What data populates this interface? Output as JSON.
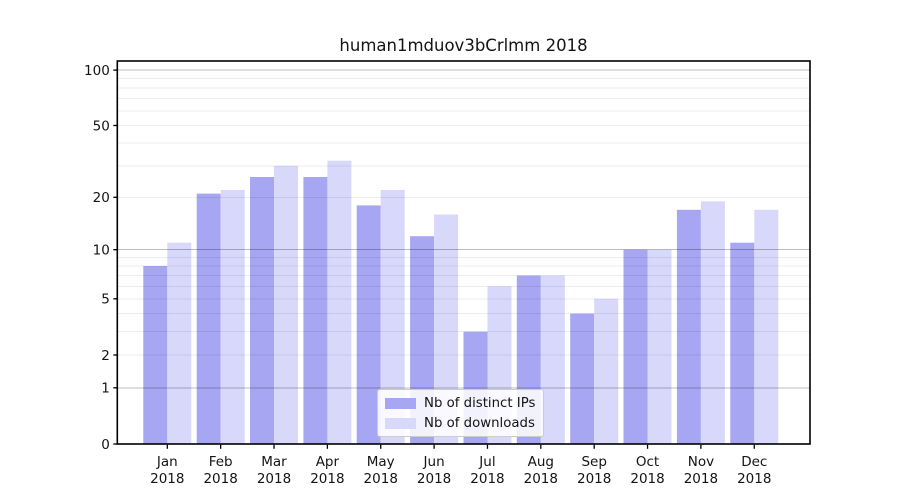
{
  "chart_data": {
    "type": "bar",
    "title": "human1mduov3bCrlmm 2018",
    "categories": [
      "Jan",
      "Feb",
      "Mar",
      "Apr",
      "May",
      "Jun",
      "Jul",
      "Aug",
      "Sep",
      "Oct",
      "Nov",
      "Dec"
    ],
    "year_label": "2018",
    "series": [
      {
        "name": "Nb of distinct IPs",
        "color": "#a6a6f2",
        "values": [
          8,
          21,
          26,
          26,
          18,
          12,
          3,
          7,
          4,
          10,
          17,
          11
        ]
      },
      {
        "name": "Nb of downloads",
        "color": "#d8d8fa",
        "values": [
          11,
          22,
          30,
          32,
          22,
          16,
          6,
          7,
          5,
          10,
          19,
          17
        ]
      }
    ],
    "yscale": "log1p",
    "ylim": [
      0,
      112
    ],
    "ytick_values": [
      0,
      1,
      2,
      5,
      10,
      20,
      50,
      100
    ],
    "grid_minor_values": [
      2,
      3,
      4,
      5,
      6,
      7,
      8,
      9,
      20,
      30,
      40,
      50,
      60,
      70,
      80,
      90
    ],
    "grid_major_values": [
      1,
      10,
      100
    ],
    "legend_position": "lower center",
    "grid_on": true,
    "colors": {
      "bar_distinct_ips": "#a6a6f2",
      "bar_downloads": "#d8d8fa",
      "grid_major": "#bbbbbb",
      "grid_minor": "#ededed",
      "axis": "#000000",
      "text": "#141414"
    }
  }
}
